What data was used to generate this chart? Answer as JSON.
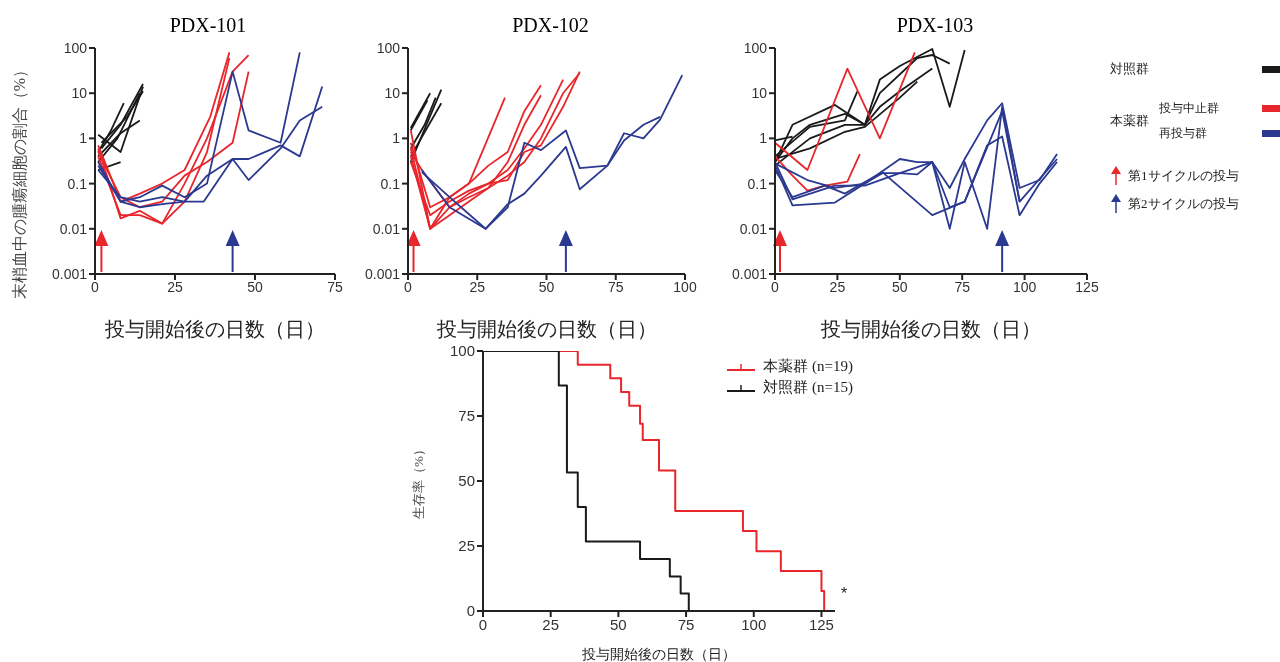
{
  "chart_data": [
    {
      "type": "line",
      "title": "PDX-101",
      "xlabel": "投与開始後の日数（日）",
      "ylabel": "末梢血中の腫瘍細胞の割合（%）",
      "log": true,
      "xlim": [
        0,
        75
      ],
      "xticks": [
        0,
        25,
        50,
        75
      ],
      "ylim": [
        0.001,
        100
      ],
      "yticks": [
        0.001,
        0.01,
        0.1,
        1,
        10,
        100
      ],
      "series": [
        {
          "color": "#1a1a1a",
          "x": [
            1,
            5,
            9
          ],
          "values": [
            0.5,
            1.5,
            6
          ]
        },
        {
          "color": "#1a1a1a",
          "x": [
            1,
            8,
            15
          ],
          "values": [
            1.2,
            0.5,
            14
          ]
        },
        {
          "color": "#1a1a1a",
          "x": [
            1,
            7,
            14
          ],
          "values": [
            0.3,
            1,
            10
          ]
        },
        {
          "color": "#1a1a1a",
          "x": [
            2,
            8,
            15
          ],
          "values": [
            0.6,
            2,
            16
          ]
        },
        {
          "color": "#1a1a1a",
          "x": [
            1,
            8,
            14
          ],
          "values": [
            0.4,
            1.3,
            2.5
          ]
        },
        {
          "color": "#1a1a1a",
          "x": [
            1,
            8
          ],
          "values": [
            0.2,
            0.3
          ]
        },
        {
          "color": "#1a1a1a",
          "x": [
            2,
            10,
            15
          ],
          "values": [
            0.8,
            3,
            11
          ]
        },
        {
          "color": "#e8262b",
          "x": [
            1,
            8,
            14,
            21,
            28,
            36,
            42
          ],
          "values": [
            0.7,
            0.04,
            0.06,
            0.1,
            0.2,
            3,
            80
          ]
        },
        {
          "color": "#e8262b",
          "x": [
            1,
            8,
            14,
            21,
            28,
            35,
            43,
            48
          ],
          "values": [
            0.6,
            0.017,
            0.025,
            0.013,
            0.1,
            1,
            30,
            70
          ]
        },
        {
          "color": "#e8262b",
          "x": [
            1,
            8,
            14,
            21,
            28,
            35,
            43,
            48
          ],
          "values": [
            0.5,
            0.05,
            0.03,
            0.04,
            0.15,
            0.3,
            0.8,
            30
          ]
        },
        {
          "color": "#e8262b",
          "x": [
            1,
            8,
            14,
            21,
            28,
            35,
            42
          ],
          "values": [
            0.4,
            0.02,
            0.02,
            0.013,
            0.04,
            0.5,
            60
          ]
        },
        {
          "color": "#2b3990",
          "x": [
            1,
            8,
            14,
            21,
            28,
            35,
            43,
            48,
            58,
            64
          ],
          "values": [
            0.3,
            0.04,
            0.05,
            0.09,
            0.05,
            0.1,
            30,
            1.5,
            0.8,
            80
          ]
        },
        {
          "color": "#2b3990",
          "x": [
            1,
            8,
            14,
            21,
            28,
            34,
            43,
            48,
            58,
            64,
            71
          ],
          "values": [
            0.2,
            0.05,
            0.04,
            0.05,
            0.04,
            0.04,
            0.35,
            0.12,
            0.6,
            2.5,
            5
          ]
        },
        {
          "color": "#2b3990",
          "x": [
            1,
            8,
            14,
            21,
            28,
            35,
            43,
            48,
            58,
            64,
            71
          ],
          "values": [
            0.25,
            0.04,
            0.03,
            0.035,
            0.04,
            0.15,
            0.35,
            0.35,
            0.7,
            0.4,
            14
          ]
        }
      ],
      "ref_lines": [
        {
          "axis": "x",
          "value": 2,
          "color": "#e8262b"
        },
        {
          "axis": "x",
          "value": 43,
          "color": "#2b3990"
        }
      ]
    },
    {
      "type": "line",
      "title": "PDX-102",
      "xlabel": "投与開始後の日数（日）",
      "log": true,
      "xlim": [
        0,
        100
      ],
      "xticks": [
        0,
        25,
        50,
        75,
        100
      ],
      "ylim": [
        0.001,
        100
      ],
      "yticks": [
        0.001,
        0.01,
        0.1,
        1,
        10,
        100
      ],
      "series": [
        {
          "color": "#1a1a1a",
          "x": [
            1,
            8
          ],
          "values": [
            1.7,
            10
          ]
        },
        {
          "color": "#1a1a1a",
          "x": [
            1,
            7
          ],
          "values": [
            1.5,
            7
          ]
        },
        {
          "color": "#1a1a1a",
          "x": [
            1,
            12
          ],
          "values": [
            0.3,
            12
          ]
        },
        {
          "color": "#1a1a1a",
          "x": [
            1,
            12
          ],
          "values": [
            0.4,
            6
          ]
        },
        {
          "color": "#1a1a1a",
          "x": [
            1,
            6,
            10
          ],
          "values": [
            0.6,
            2,
            8
          ]
        },
        {
          "color": "#e8262b",
          "x": [
            1,
            8,
            15,
            22,
            35
          ],
          "values": [
            1.5,
            0.01,
            0.05,
            0.1,
            8
          ]
        },
        {
          "color": "#e8262b",
          "x": [
            1,
            8,
            15,
            22,
            29,
            36,
            42,
            48
          ],
          "values": [
            0.8,
            0.03,
            0.05,
            0.1,
            0.25,
            0.5,
            4,
            15
          ]
        },
        {
          "color": "#e8262b",
          "x": [
            1,
            8,
            15,
            22,
            29,
            36,
            42,
            48
          ],
          "values": [
            0.6,
            0.01,
            0.02,
            0.04,
            0.08,
            0.3,
            2,
            9
          ]
        },
        {
          "color": "#e8262b",
          "x": [
            1,
            5,
            15,
            22,
            29,
            36,
            42,
            48,
            56,
            62
          ],
          "values": [
            0.5,
            0.2,
            0.03,
            0.06,
            0.1,
            0.12,
            0.5,
            0.7,
            5,
            30
          ]
        },
        {
          "color": "#e8262b",
          "x": [
            1,
            8,
            15,
            22,
            29,
            36,
            42,
            48,
            56,
            62
          ],
          "values": [
            0.4,
            0.01,
            0.03,
            0.05,
            0.08,
            0.15,
            0.3,
            1,
            10,
            28
          ]
        },
        {
          "color": "#e8262b",
          "x": [
            1,
            8,
            15,
            22,
            29,
            36,
            42,
            48,
            56
          ],
          "values": [
            0.3,
            0.02,
            0.04,
            0.07,
            0.1,
            0.2,
            0.6,
            2,
            20
          ]
        },
        {
          "color": "#2b3990",
          "x": [
            5,
            15,
            28,
            36,
            42,
            48,
            57,
            62,
            72,
            78,
            85,
            91,
            99
          ],
          "values": [
            0.2,
            0.03,
            0.01,
            0.03,
            0.8,
            0.55,
            1.5,
            0.22,
            0.25,
            1.3,
            1,
            2.6,
            25
          ]
        },
        {
          "color": "#2b3990",
          "x": [
            5,
            15,
            28,
            36,
            42,
            48,
            57,
            62,
            72,
            78,
            85,
            91
          ],
          "values": [
            0.18,
            0.05,
            0.01,
            0.035,
            0.06,
            0.15,
            0.65,
            0.075,
            0.25,
            0.9,
            2,
            3
          ]
        }
      ],
      "ref_lines": [
        {
          "axis": "x",
          "value": 2,
          "color": "#e8262b"
        },
        {
          "axis": "x",
          "value": 57,
          "color": "#2b3990"
        }
      ]
    },
    {
      "type": "line",
      "title": "PDX-103",
      "xlabel": "投与開始後の日数（日）",
      "log": true,
      "xlim": [
        0,
        125
      ],
      "xticks": [
        0,
        25,
        50,
        75,
        100,
        125
      ],
      "ylim": [
        0.001,
        100
      ],
      "yticks": [
        0.001,
        0.01,
        0.1,
        1,
        10,
        100
      ],
      "legend": "right",
      "legend_title": "本薬群",
      "series": [
        {
          "name": "対照群",
          "color": "#1a1a1a",
          "x": [
            0,
            7,
            24,
            36,
            42,
            50,
            63,
            70,
            76
          ],
          "values": [
            0.3,
            2,
            5.5,
            2,
            20,
            40,
            95,
            5,
            90
          ]
        },
        {
          "color": "#1a1a1a",
          "x": [
            0,
            7,
            14,
            28,
            36,
            42,
            57,
            63,
            70
          ],
          "values": [
            0.3,
            1,
            2,
            3.5,
            2,
            10,
            60,
            70,
            45
          ]
        },
        {
          "color": "#1a1a1a",
          "x": [
            0,
            7
          ],
          "values": [
            0.9,
            1.1
          ]
        },
        {
          "color": "#1a1a1a",
          "x": [
            0,
            14,
            28,
            33
          ],
          "values": [
            0.4,
            1.8,
            2.5,
            11
          ]
        },
        {
          "color": "#1a1a1a",
          "x": [
            0,
            14,
            28,
            36,
            42,
            50,
            63
          ],
          "values": [
            0.25,
            1,
            2,
            2,
            5,
            11,
            35
          ]
        },
        {
          "color": "#1a1a1a",
          "x": [
            0,
            14,
            28,
            36,
            50,
            57
          ],
          "values": [
            0.35,
            0.6,
            1.4,
            1.8,
            8,
            18
          ]
        },
        {
          "name": "投与中止群",
          "color": "#e8262b",
          "x": [
            0,
            13,
            29,
            42,
            56
          ],
          "values": [
            0.8,
            0.2,
            35,
            1,
            80
          ]
        },
        {
          "color": "#e8262b",
          "x": [
            0,
            7,
            13,
            20,
            29,
            34
          ],
          "values": [
            0.4,
            0.15,
            0.07,
            0.09,
            0.11,
            0.45
          ]
        },
        {
          "name": "再投与群",
          "color": "#2b3990",
          "x": [
            0,
            7,
            24,
            36,
            50,
            63,
            70,
            76,
            85,
            91,
            98,
            106,
            113
          ],
          "values": [
            0.3,
            0.045,
            0.09,
            0.09,
            0.17,
            0.3,
            0.08,
            0.35,
            2.5,
            6,
            0.08,
            0.12,
            0.45
          ]
        },
        {
          "color": "#2b3990",
          "x": [
            0,
            7,
            24,
            36,
            50,
            57,
            63,
            70,
            76,
            85,
            91,
            98,
            113
          ],
          "values": [
            0.25,
            0.033,
            0.038,
            0.1,
            0.35,
            0.3,
            0.3,
            0.01,
            0.3,
            0.01,
            5,
            0.04,
            0.35
          ]
        },
        {
          "color": "#2b3990",
          "x": [
            0,
            13,
            24,
            36,
            43,
            50,
            57,
            63,
            70,
            76,
            85,
            91,
            98,
            106,
            113
          ],
          "values": [
            0.28,
            0.12,
            0.08,
            0.1,
            0.17,
            0.17,
            0.16,
            0.3,
            0.03,
            0.04,
            0.7,
            1.1,
            0.02,
            0.1,
            0.3
          ]
        },
        {
          "color": "#2b3990",
          "x": [
            0,
            7,
            20,
            28,
            43,
            63,
            76,
            91,
            98
          ],
          "values": [
            0.2,
            0.05,
            0.09,
            0.06,
            0.18,
            0.02,
            0.04,
            4,
            0.04
          ]
        }
      ],
      "ref_lines": [
        {
          "axis": "x",
          "value": 2,
          "color": "#e8262b"
        },
        {
          "axis": "x",
          "value": 91,
          "color": "#2b3990"
        }
      ],
      "annotations": [
        "第1サイクルの投与",
        "第2サイクルの投与"
      ]
    },
    {
      "type": "step",
      "xlabel": "投与開始後の日数（日）",
      "ylabel": "生存率（%）",
      "xlim": [
        0,
        130
      ],
      "xticks": [
        0,
        25,
        50,
        75,
        100,
        125
      ],
      "ylim": [
        0,
        100
      ],
      "yticks": [
        0,
        25,
        50,
        75,
        100
      ],
      "legend": "top right",
      "series": [
        {
          "name": "本薬群 (n=19)",
          "color": "#e8262b",
          "x": [
            0,
            35,
            47,
            51,
            54,
            58,
            59,
            65,
            71,
            96,
            101,
            110,
            125,
            126
          ],
          "values": [
            100,
            94.7,
            89.5,
            84.2,
            78.9,
            72,
            65.8,
            54,
            38.5,
            30.8,
            23,
            15.4,
            7.7,
            0
          ]
        },
        {
          "name": "対照群 (n=15)",
          "color": "#1a1a1a",
          "x": [
            0,
            28,
            31,
            35,
            38,
            58,
            69,
            73,
            76
          ],
          "values": [
            100,
            86.7,
            53.3,
            40,
            26.7,
            20,
            13.3,
            6.7,
            0
          ]
        }
      ],
      "annotations": [
        "*"
      ]
    }
  ]
}
